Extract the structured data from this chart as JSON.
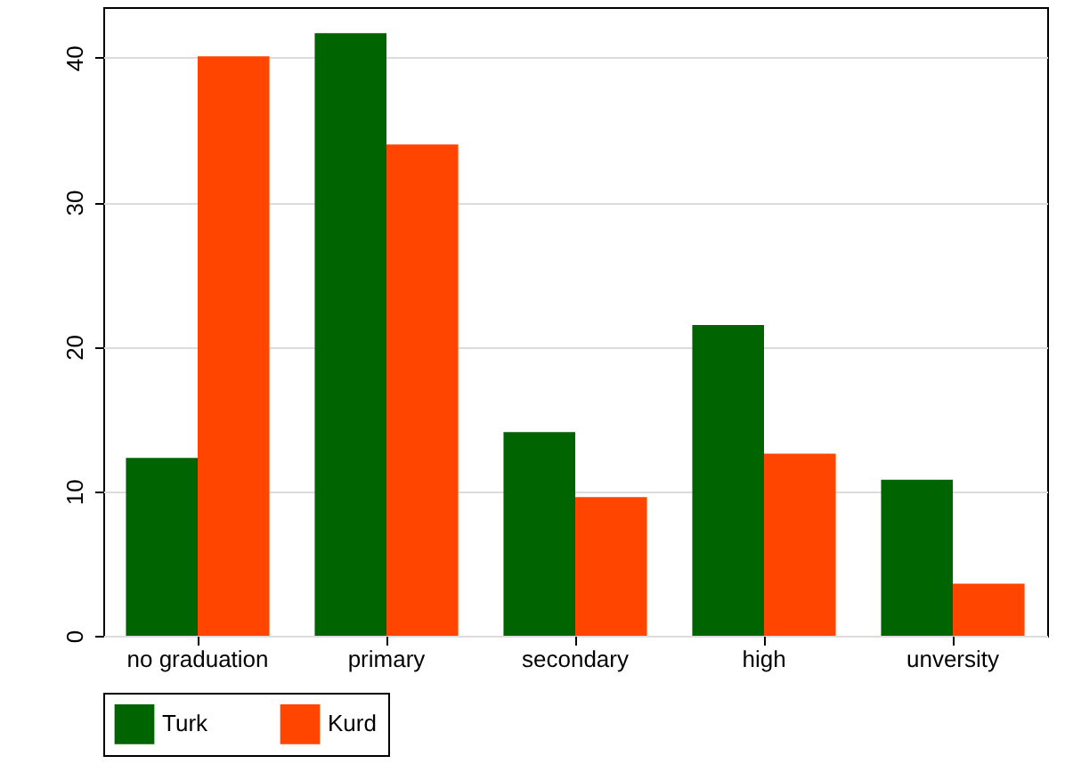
{
  "chart_data": {
    "type": "bar",
    "categories": [
      "no graduation",
      "primary",
      "secondary",
      "high",
      "unversity"
    ],
    "series": [
      {
        "name": "Turk",
        "color": "#006400",
        "values": [
          12.3,
          41.7,
          14.1,
          21.5,
          10.8
        ]
      },
      {
        "name": "Kurd",
        "color": "#ff4500",
        "values": [
          40.1,
          34.0,
          9.6,
          12.6,
          3.6
        ]
      }
    ],
    "ylim": [
      0,
      43.5
    ],
    "yticks": [
      0,
      10,
      20,
      30,
      40
    ],
    "grid": "y",
    "legend": "bottom"
  }
}
